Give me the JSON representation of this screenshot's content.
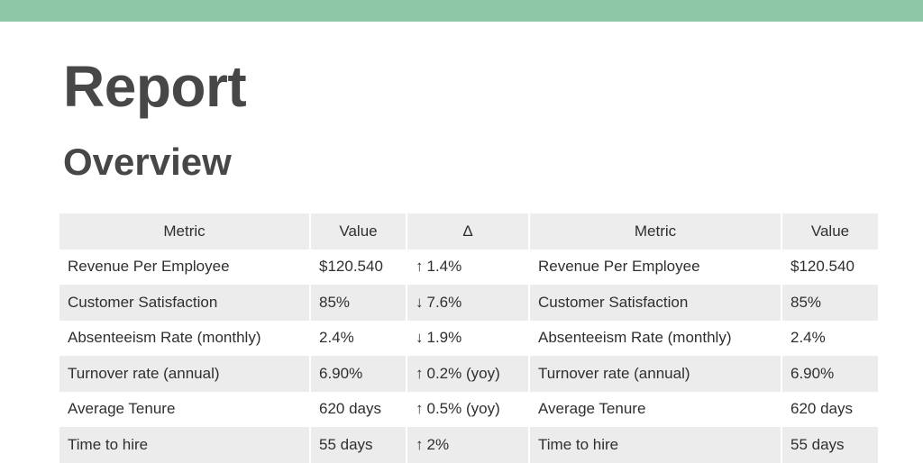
{
  "header": {
    "accent_color": "#8cc6a6"
  },
  "page": {
    "title": "Report",
    "section_title": "Overview"
  },
  "table": {
    "columns": [
      "Metric",
      "Value",
      "Δ",
      "Metric",
      "Value"
    ],
    "rows": [
      {
        "metric": "Revenue Per Employee",
        "value": "$120.540",
        "delta_arrow": "↑",
        "delta": "1.4%",
        "metric2": "Revenue Per Employee",
        "value2": "$120.540"
      },
      {
        "metric": "Customer Satisfaction",
        "value": "85%",
        "delta_arrow": "↓",
        "delta": "7.6%",
        "metric2": "Customer Satisfaction",
        "value2": "85%"
      },
      {
        "metric": "Absenteeism Rate (monthly)",
        "value": "2.4%",
        "delta_arrow": "↓",
        "delta": "1.9%",
        "metric2": "Absenteeism Rate (monthly)",
        "value2": "2.4%"
      },
      {
        "metric": "Turnover rate (annual)",
        "value": "6.90%",
        "delta_arrow": "↑",
        "delta": "0.2% (yoy)",
        "metric2": "Turnover rate (annual)",
        "value2": "6.90%"
      },
      {
        "metric": "Average Tenure",
        "value": "620 days",
        "delta_arrow": "↑",
        "delta": "0.5% (yoy)",
        "metric2": "Average Tenure",
        "value2": "620 days"
      },
      {
        "metric": "Time to hire",
        "value": "55 days",
        "delta_arrow": "↑",
        "delta": "2%",
        "metric2": "Time to hire",
        "value2": "55 days"
      }
    ]
  }
}
